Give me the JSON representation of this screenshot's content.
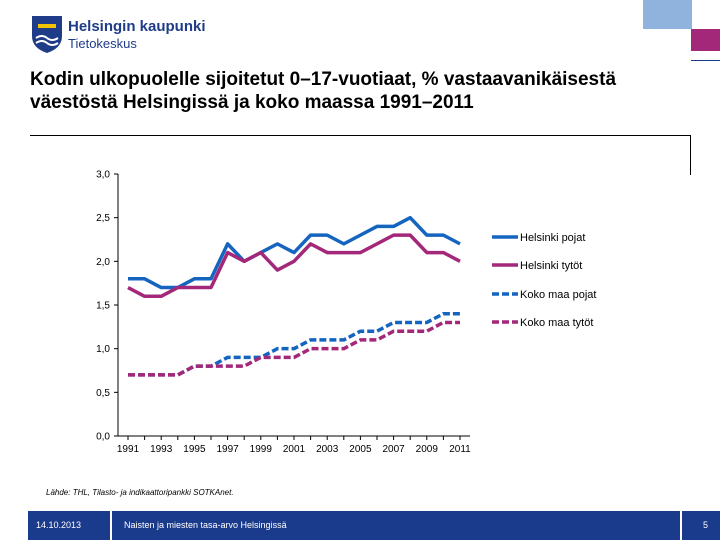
{
  "header": {
    "org_name": "Helsingin kaupunki",
    "org_unit": "Tietokeskus"
  },
  "slide": {
    "title": "Kodin ulkopuolelle sijoitetut 0–17-vuotiaat, % vastaavanikäisestä väestöstä Helsingissä ja koko maassa 1991–2011",
    "source": "Lähde: THL, Tilasto- ja indikaattoripankki SOTKAnet.",
    "date": "14.10.2013",
    "footer_title": "Naisten ja miesten tasa-arvo Helsingissä",
    "page_number": "5"
  },
  "colors": {
    "blue": "#1565c0",
    "magenta": "#a3287a",
    "footer": "#1a3a8c"
  },
  "chart_data": {
    "type": "line",
    "x": [
      1991,
      1992,
      1993,
      1994,
      1995,
      1996,
      1997,
      1998,
      1999,
      2000,
      2001,
      2002,
      2003,
      2004,
      2005,
      2006,
      2007,
      2008,
      2009,
      2010,
      2011
    ],
    "xticks": [
      "1991",
      "1993",
      "1995",
      "1997",
      "1999",
      "2001",
      "2003",
      "2005",
      "2007",
      "2009",
      "2011"
    ],
    "yticks": [
      "0,0",
      "0,5",
      "1,0",
      "1,5",
      "2,0",
      "2,5",
      "3,0"
    ],
    "ylim": [
      0,
      3
    ],
    "series": [
      {
        "name": "Helsinki pojat",
        "color": "#1565c0",
        "dash": false,
        "values": [
          1.8,
          1.8,
          1.7,
          1.7,
          1.8,
          1.8,
          2.2,
          2.0,
          2.1,
          2.2,
          2.1,
          2.3,
          2.3,
          2.2,
          2.3,
          2.4,
          2.4,
          2.5,
          2.3,
          2.3,
          2.2
        ]
      },
      {
        "name": "Helsinki tytöt",
        "color": "#a3287a",
        "dash": false,
        "values": [
          1.7,
          1.6,
          1.6,
          1.7,
          1.7,
          1.7,
          2.1,
          2.0,
          2.1,
          1.9,
          2.0,
          2.2,
          2.1,
          2.1,
          2.1,
          2.2,
          2.3,
          2.3,
          2.1,
          2.1,
          2.0
        ]
      },
      {
        "name": "Koko maa pojat",
        "color": "#1565c0",
        "dash": true,
        "values": [
          0.7,
          0.7,
          0.7,
          0.7,
          0.8,
          0.8,
          0.9,
          0.9,
          0.9,
          1.0,
          1.0,
          1.1,
          1.1,
          1.1,
          1.2,
          1.2,
          1.3,
          1.3,
          1.3,
          1.4,
          1.4
        ]
      },
      {
        "name": "Koko maa tytöt",
        "color": "#a3287a",
        "dash": true,
        "values": [
          0.7,
          0.7,
          0.7,
          0.7,
          0.8,
          0.8,
          0.8,
          0.8,
          0.9,
          0.9,
          0.9,
          1.0,
          1.0,
          1.0,
          1.1,
          1.1,
          1.2,
          1.2,
          1.2,
          1.3,
          1.3
        ]
      }
    ],
    "legend_position": "right"
  }
}
